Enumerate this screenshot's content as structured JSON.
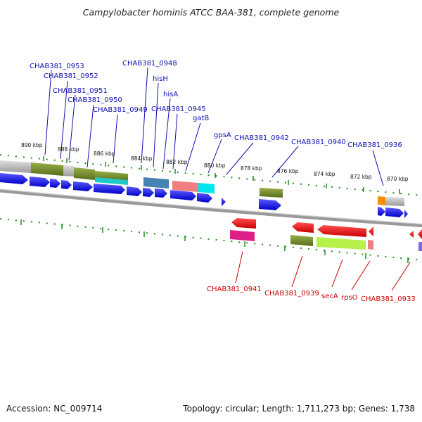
{
  "title": "Campylobacter hominis ATCC BAA-381, complete genome",
  "footer": {
    "accession_label": "Accession:",
    "accession": "NC_009714",
    "topology_label": "Topology:",
    "topology": "circular",
    "length_label": "Length:",
    "length": "1,711,273 bp",
    "genes_label": "Genes:",
    "genes": "1,738"
  },
  "tick_labels": [
    "890 kbp",
    "888 kbp",
    "886 kbp",
    "884 kbp",
    "882 kbp",
    "880 kbp",
    "878 kbp",
    "876 kbp",
    "874 kbp",
    "872 kbp",
    "870 kbp"
  ],
  "top_labels": [
    "CHAB381_0953",
    "CHAB381_0952",
    "CHAB381_0951",
    "CHAB381_0950",
    "CHAB381_0949",
    "CHAB381_0948",
    "hisH",
    "hisA",
    "CHAB381_0945",
    "gatB",
    "gpsA",
    "CHAB381_0942",
    "CHAB381_0940",
    "CHAB381_0936"
  ],
  "bottom_labels": [
    "CHAB381_0941",
    "CHAB381_0939",
    "secA",
    "rpsO",
    "CHAB381_0933"
  ],
  "colors": {
    "forward_cds": "#1010e0",
    "reverse_cds": "#e00000",
    "top_label": "#1010b0",
    "bottom_label": "#cc0000",
    "backbone": "#888888",
    "tick": "#228b22"
  }
}
